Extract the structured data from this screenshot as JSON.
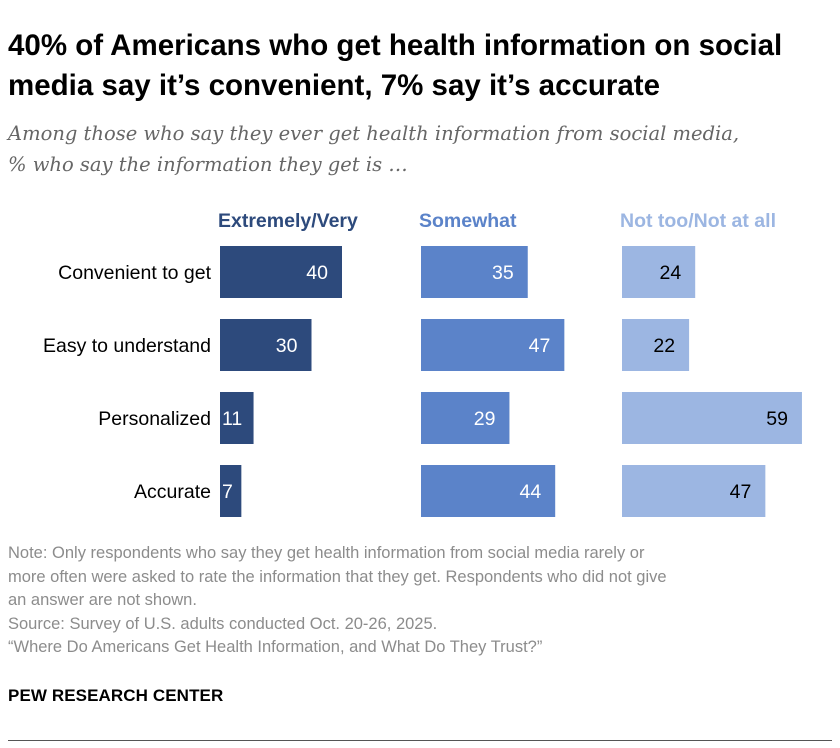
{
  "title": "40% of Americans who get health information on social media say it’s convenient, 7% say it’s accurate",
  "subtitle_lines": [
    "Among those who say they ever get health information from social media,",
    "% who say the information they get is …"
  ],
  "notes": {
    "note_lines": [
      "Note: Only respondents who say they get health information from social media rarely or",
      "more often were asked to rate the information that they get. Respondents who did not give",
      "an answer are not shown."
    ],
    "source": "Source: Survey of U.S. adults conducted Oct. 20-26, 2025.",
    "report": "“Where Do Americans Get Health Information, and What Do They Trust?”"
  },
  "brand": "PEW RESEARCH CENTER",
  "colors": {
    "extremely_very": "#2d4a7c",
    "somewhat": "#5b83c9",
    "not_too": "#9cb6e2",
    "label_light": "#ffffff",
    "label_dark": "#000000"
  },
  "chart_data": {
    "type": "bar",
    "orientation": "horizontal",
    "layout": "small-multiples",
    "categories": [
      "Convenient to get",
      "Easy to understand",
      "Personalized",
      "Accurate"
    ],
    "series": [
      {
        "name": "Extremely/Very",
        "values": [
          40,
          30,
          11,
          7
        ]
      },
      {
        "name": "Somewhat",
        "values": [
          35,
          47,
          29,
          44
        ]
      },
      {
        "name": "Not too/Not at all",
        "values": [
          24,
          22,
          59,
          47
        ]
      }
    ],
    "xlim": [
      0,
      100
    ],
    "grid": false,
    "legend": "column headers above bars"
  }
}
